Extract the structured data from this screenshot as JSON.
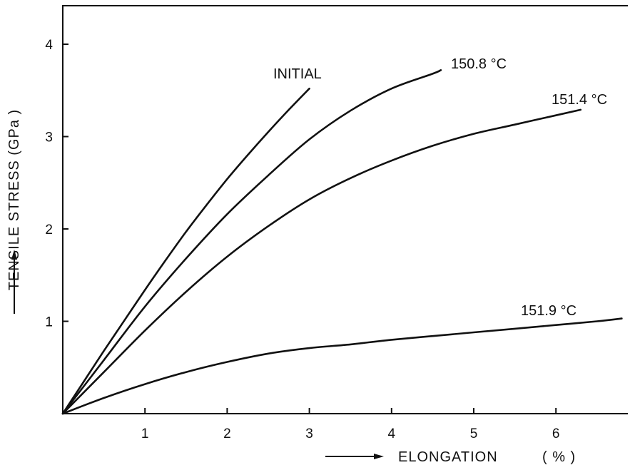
{
  "chart_data": {
    "type": "line",
    "xlabel": "ELONGATION",
    "xunit": "( % )",
    "ylabel": "TENSILE STRESS (GPa )",
    "xlim": [
      0,
      6.9
    ],
    "ylim": [
      0,
      4.4
    ],
    "xticks": [
      "1",
      "2",
      "3",
      "4",
      "5",
      "6"
    ],
    "yticks": [
      "1",
      "2",
      "3",
      "4"
    ],
    "grid": false,
    "legend": "none",
    "series": [
      {
        "name": "INITIAL",
        "x": [
          0,
          0.25,
          0.5,
          0.75,
          1.0,
          1.25,
          1.5,
          1.75,
          2.0,
          2.25,
          2.5,
          2.75,
          3.0
        ],
        "y": [
          0,
          0.34,
          0.68,
          1.01,
          1.34,
          1.66,
          1.97,
          2.26,
          2.54,
          2.8,
          3.05,
          3.29,
          3.52
        ]
      },
      {
        "name": "150.8 °C",
        "x": [
          0,
          0.5,
          1.0,
          1.5,
          2.0,
          2.5,
          3.0,
          3.5,
          4.0,
          4.5,
          4.6
        ],
        "y": [
          0,
          0.58,
          1.16,
          1.68,
          2.16,
          2.58,
          2.97,
          3.28,
          3.52,
          3.68,
          3.72
        ]
      },
      {
        "name": "151.4 °C",
        "x": [
          0,
          0.5,
          1.0,
          1.5,
          2.0,
          2.5,
          3.0,
          3.5,
          4.0,
          4.5,
          5.0,
          5.5,
          6.0,
          6.3
        ],
        "y": [
          0,
          0.45,
          0.9,
          1.32,
          1.7,
          2.03,
          2.32,
          2.55,
          2.74,
          2.9,
          3.03,
          3.13,
          3.23,
          3.29
        ]
      },
      {
        "name": "151.9 °C",
        "x": [
          0,
          0.5,
          1.0,
          1.5,
          2.0,
          2.5,
          3.0,
          3.5,
          4.0,
          4.5,
          5.0,
          5.5,
          6.0,
          6.5,
          6.8
        ],
        "y": [
          0,
          0.17,
          0.32,
          0.45,
          0.56,
          0.65,
          0.71,
          0.75,
          0.8,
          0.84,
          0.88,
          0.92,
          0.96,
          1.0,
          1.03
        ]
      }
    ],
    "annotations": [
      {
        "series": 0,
        "text": "INITIAL"
      },
      {
        "series": 1,
        "text": "150.8 °C"
      },
      {
        "series": 2,
        "text": "151.4 °C"
      },
      {
        "series": 3,
        "text": "151.9 °C"
      }
    ]
  }
}
